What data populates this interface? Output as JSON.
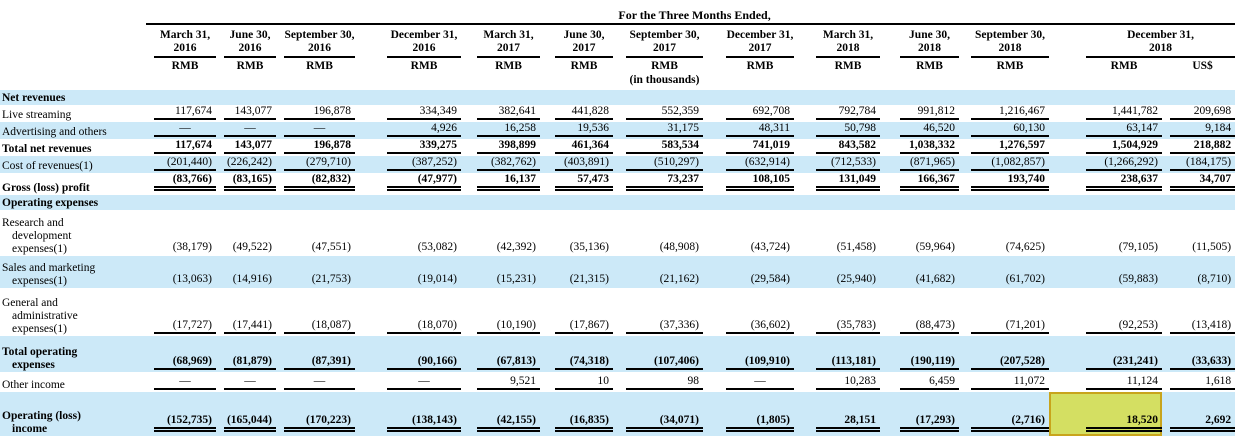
{
  "colors": {
    "stripe_blue": "#cce9f8",
    "highlight_bg": "#d4df62",
    "highlight_border": "#c8a41c",
    "rule_black": "#000000"
  },
  "header": {
    "title": "For the Three Months Ended,",
    "units_note": "(in thousands)",
    "units_note_group_index": 6,
    "column_groups": [
      {
        "date_line1": "March 31,",
        "date_line2": "2016",
        "units": [
          "RMB"
        ]
      },
      {
        "date_line1": "June 30,",
        "date_line2": "2016",
        "units": [
          "RMB"
        ]
      },
      {
        "date_line1": "September 30,",
        "date_line2": "2016",
        "units": [
          "RMB"
        ]
      },
      {
        "date_line1": "December 31,",
        "date_line2": "2016",
        "units": [
          "RMB"
        ]
      },
      {
        "date_line1": "March 31,",
        "date_line2": "2017",
        "units": [
          "RMB"
        ]
      },
      {
        "date_line1": "June 30,",
        "date_line2": "2017",
        "units": [
          "RMB"
        ]
      },
      {
        "date_line1": "September 30,",
        "date_line2": "2017",
        "units": [
          "RMB"
        ]
      },
      {
        "date_line1": "December 31,",
        "date_line2": "2017",
        "units": [
          "RMB"
        ]
      },
      {
        "date_line1": "March 31,",
        "date_line2": "2018",
        "units": [
          "RMB"
        ]
      },
      {
        "date_line1": "June 30,",
        "date_line2": "2018",
        "units": [
          "RMB"
        ]
      },
      {
        "date_line1": "September 30,",
        "date_line2": "2018",
        "units": [
          "RMB"
        ]
      },
      {
        "date_line1": "December 31,",
        "date_line2": "2018",
        "units": [
          "RMB",
          "US$"
        ]
      }
    ]
  },
  "rows": [
    {
      "label_lines": [
        "Net revenues"
      ],
      "section": true,
      "bold": true,
      "shaded": true,
      "underline": "none",
      "values": []
    },
    {
      "label_lines": [
        "Live streaming"
      ],
      "bold": false,
      "shaded": false,
      "underline": "single",
      "values": [
        "117,674",
        "143,077",
        "196,878",
        "334,349",
        "382,641",
        "441,828",
        "552,359",
        "692,708",
        "792,784",
        "991,812",
        "1,216,467",
        "1,441,782",
        "209,698"
      ]
    },
    {
      "label_lines": [
        "Advertising and others"
      ],
      "bold": false,
      "shaded": true,
      "underline": "single",
      "values": [
        "—",
        "—",
        "—",
        "4,926",
        "16,258",
        "19,536",
        "31,175",
        "48,311",
        "50,798",
        "46,520",
        "60,130",
        "63,147",
        "9,184"
      ]
    },
    {
      "label_lines": [
        "Total net revenues"
      ],
      "bold": true,
      "shaded": false,
      "underline": "single",
      "values": [
        "117,674",
        "143,077",
        "196,878",
        "339,275",
        "398,899",
        "461,364",
        "583,534",
        "741,019",
        "843,582",
        "1,038,332",
        "1,276,597",
        "1,504,929",
        "218,882"
      ]
    },
    {
      "label_lines": [
        "Cost of revenues(1)"
      ],
      "bold": false,
      "shaded": true,
      "underline": "single",
      "values": [
        "(201,440)",
        "(226,242)",
        "(279,710)",
        "(387,252)",
        "(382,762)",
        "(403,891)",
        "(510,297)",
        "(632,914)",
        "(712,533)",
        "(871,965)",
        "(1,082,857)",
        "(1,266,292)",
        "(184,175)"
      ]
    },
    {
      "label_lines": [
        "Gross (loss) profit"
      ],
      "bold": true,
      "shaded": false,
      "underline": "double",
      "values": [
        "(83,766)",
        "(83,165)",
        "(82,832)",
        "(47,977)",
        "16,137",
        "57,473",
        "73,237",
        "108,105",
        "131,049",
        "166,367",
        "193,740",
        "238,637",
        "34,707"
      ]
    },
    {
      "label_lines": [
        "Operating expenses"
      ],
      "section": true,
      "bold": true,
      "shaded": true,
      "underline": "none",
      "values": []
    },
    {
      "label_lines": [
        "Research and",
        "development",
        "expenses(1)"
      ],
      "bold": false,
      "shaded": false,
      "underline": "none",
      "values": [
        "(38,179)",
        "(49,522)",
        "(47,551)",
        "(53,082)",
        "(42,392)",
        "(35,136)",
        "(48,908)",
        "(43,724)",
        "(51,458)",
        "(59,964)",
        "(74,625)",
        "(79,105)",
        "(11,505)"
      ]
    },
    {
      "label_lines": [
        "Sales and marketing",
        "expenses(1)"
      ],
      "bold": false,
      "shaded": true,
      "underline": "none",
      "values": [
        "(13,063)",
        "(14,916)",
        "(21,753)",
        "(19,014)",
        "(15,231)",
        "(21,315)",
        "(21,162)",
        "(29,584)",
        "(25,940)",
        "(41,682)",
        "(61,702)",
        "(59,883)",
        "(8,710)"
      ]
    },
    {
      "label_lines": [
        "General and",
        "administrative",
        "expenses(1)"
      ],
      "bold": false,
      "shaded": false,
      "underline": "single",
      "values": [
        "(17,727)",
        "(17,441)",
        "(18,087)",
        "(18,070)",
        "(10,190)",
        "(17,867)",
        "(37,336)",
        "(36,602)",
        "(35,783)",
        "(88,473)",
        "(71,201)",
        "(92,253)",
        "(13,418)"
      ]
    },
    {
      "label_lines": [
        "Total operating",
        "expenses"
      ],
      "bold": true,
      "shaded": true,
      "underline": "single",
      "values": [
        "(68,969)",
        "(81,879)",
        "(87,391)",
        "(90,166)",
        "(67,813)",
        "(74,318)",
        "(107,406)",
        "(109,910)",
        "(113,181)",
        "(190,119)",
        "(207,528)",
        "(231,241)",
        "(33,633)"
      ]
    },
    {
      "label_lines": [
        "Other income"
      ],
      "bold": false,
      "shaded": false,
      "underline": "single",
      "values": [
        "—",
        "—",
        "—",
        "—",
        "9,521",
        "10",
        "98",
        "—",
        "10,283",
        "6,459",
        "11,072",
        "11,124",
        "1,618"
      ]
    },
    {
      "label_lines": [
        "Operating (loss)",
        "income"
      ],
      "bold": true,
      "shaded": true,
      "underline": "double",
      "values": [
        "(152,735)",
        "(165,044)",
        "(170,223)",
        "(138,143)",
        "(42,155)",
        "(16,835)",
        "(34,071)",
        "(1,805)",
        "28,151",
        "(17,293)",
        "(2,716)",
        "18,520",
        "2,692"
      ],
      "highlight_value_index": 11
    }
  ],
  "highlight": {
    "row": "Operating (loss) income",
    "column": "December 31, 2018 RMB",
    "value": "18,520"
  }
}
